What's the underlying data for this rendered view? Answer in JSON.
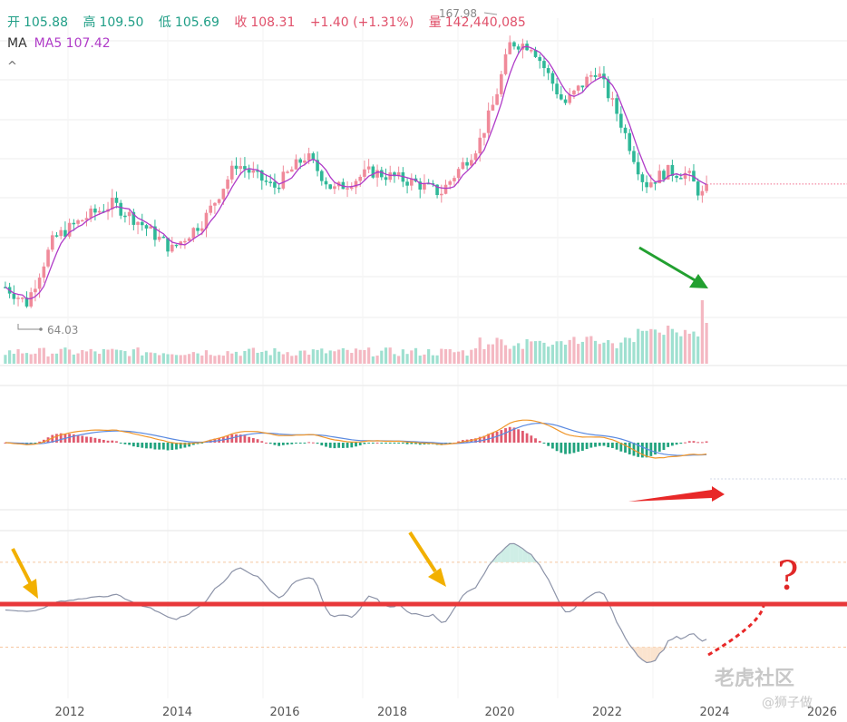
{
  "header": {
    "open_label": "开",
    "open_value": "105.88",
    "high_label": "高",
    "high_value": "109.50",
    "low_label": "低",
    "low_value": "105.69",
    "close_label": "收",
    "close_value": "108.31",
    "change": "+1.40 (+1.31%)",
    "volume_label": "量",
    "volume_value": "142,440,085"
  },
  "ma": {
    "label": "MA",
    "ma5": "MA5 107.42"
  },
  "collapse_glyph": "^",
  "annotations": {
    "max_label": "167.98",
    "min_label": "64.03",
    "question_mark": "?"
  },
  "watermark": {
    "main": "老虎社区",
    "sub": "@狮子做"
  },
  "colors": {
    "up": "#f08a9a",
    "down": "#2fb898",
    "ma5": "#b03cc8",
    "dif": "#f0962a",
    "dea": "#5b8ae0",
    "macd_up": "#e05a6e",
    "macd_down": "#22a37e",
    "rsi_line": "#8c93a8",
    "red_line": "#e8383a",
    "green_arrow": "#22a030",
    "red_arrow": "#e82828",
    "yellow_arrow": "#f2b000",
    "question": "#e02828"
  },
  "chart_data": {
    "type": "candlestick",
    "x_ticks": [
      "2012",
      "2014",
      "2016",
      "2018",
      "2020",
      "2022",
      "2024",
      "2026"
    ],
    "price_anchors": [
      {
        "year": 2010.8,
        "price": 72
      },
      {
        "year": 2011.2,
        "price": 66
      },
      {
        "year": 2011.7,
        "price": 90
      },
      {
        "year": 2012.3,
        "price": 98
      },
      {
        "year": 2012.8,
        "price": 103
      },
      {
        "year": 2013.3,
        "price": 96
      },
      {
        "year": 2013.9,
        "price": 86
      },
      {
        "year": 2014.5,
        "price": 97
      },
      {
        "year": 2015.1,
        "price": 118
      },
      {
        "year": 2015.8,
        "price": 109
      },
      {
        "year": 2016.4,
        "price": 121
      },
      {
        "year": 2016.9,
        "price": 108
      },
      {
        "year": 2017.6,
        "price": 115
      },
      {
        "year": 2018.4,
        "price": 111
      },
      {
        "year": 2018.9,
        "price": 107
      },
      {
        "year": 2019.6,
        "price": 125
      },
      {
        "year": 2019.9,
        "price": 141
      },
      {
        "year": 2020.2,
        "price": 163
      },
      {
        "year": 2020.6,
        "price": 162
      },
      {
        "year": 2021.2,
        "price": 140
      },
      {
        "year": 2021.8,
        "price": 153
      },
      {
        "year": 2022.2,
        "price": 136
      },
      {
        "year": 2022.7,
        "price": 110
      },
      {
        "year": 2023.1,
        "price": 115
      },
      {
        "year": 2023.5,
        "price": 114
      },
      {
        "year": 2023.75,
        "price": 106
      },
      {
        "year": 2023.85,
        "price": 108
      }
    ],
    "price_max": 167.98,
    "price_min": 64.03,
    "last_ma5": 107.42
  }
}
